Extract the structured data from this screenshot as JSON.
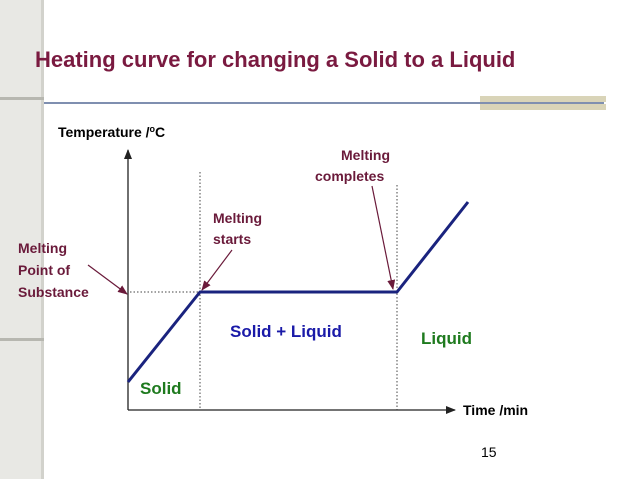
{
  "slide": {
    "title": "Heating curve for changing a Solid to a Liquid",
    "page_number": "15"
  },
  "diagram": {
    "y_axis_label": "Temperature /",
    "y_axis_unit_sup": "o",
    "y_axis_unit": "C",
    "x_axis_label": "Time /min",
    "melting_point_label": [
      "Melting",
      "Point of",
      "Substance"
    ],
    "melting_starts_label": [
      "Melting",
      "starts"
    ],
    "melting_completes_label": [
      "Melting",
      "completes"
    ],
    "region_solid": "Solid",
    "region_mixed": "Solid + Liquid",
    "region_liquid": "Liquid",
    "colors": {
      "title": "#7a1a40",
      "curve": "#1a237e",
      "mixed_label": "#1a1aa8",
      "phase_label": "#1e7a1e",
      "arrow": "#6a1a3a"
    }
  }
}
